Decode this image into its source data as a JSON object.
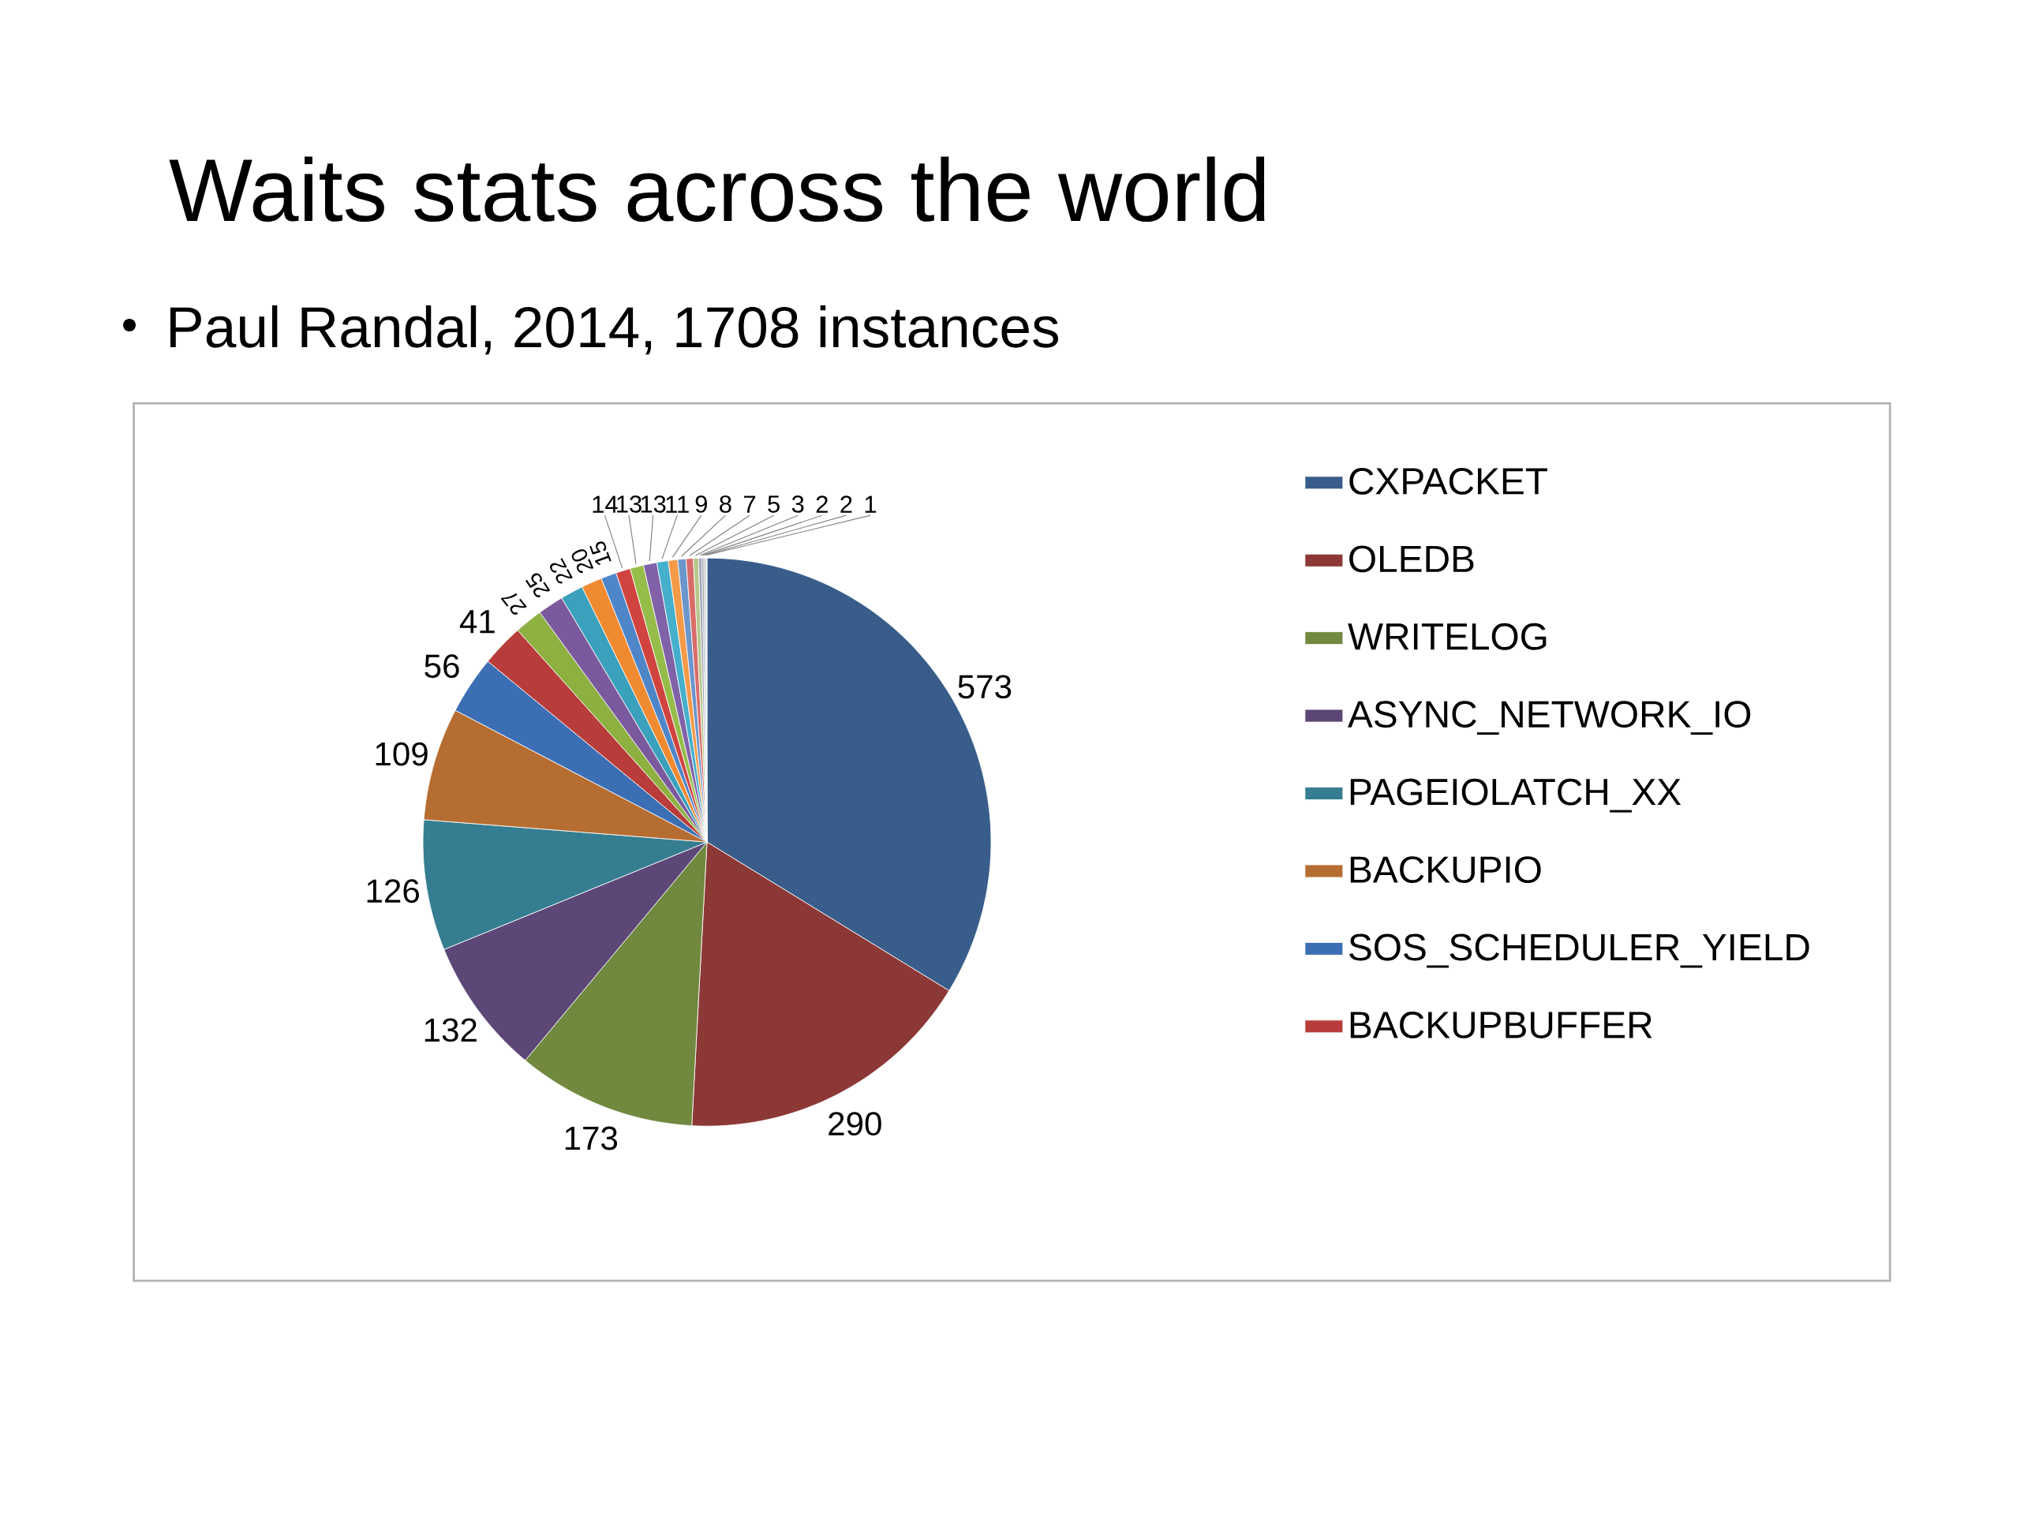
{
  "chart_data": {
    "type": "pie",
    "title": "Waits stats across the world",
    "subtitle": "Paul Randal, 2014, 1708 instances",
    "categories": [
      "CXPACKET",
      "OLEDB",
      "WRITELOG",
      "ASYNC_NETWORK_IO",
      "PAGEIOLATCH_XX",
      "BACKUPIO",
      "SOS_SCHEDULER_YIELD",
      "BACKUPBUFFER",
      null,
      null,
      null,
      null,
      null,
      null,
      null,
      null,
      null,
      null,
      null,
      null,
      null,
      null,
      null,
      null,
      null
    ],
    "values": [
      573,
      290,
      173,
      132,
      126,
      109,
      56,
      41,
      27,
      25,
      22,
      20,
      15,
      14,
      13,
      13,
      11,
      9,
      8,
      7,
      5,
      3,
      2,
      2,
      1
    ],
    "colors": [
      "#385d8a",
      "#8c3836",
      "#71893f",
      "#5c4776",
      "#357d91",
      "#b66d31",
      "#3c6eb4",
      "#b83d3a",
      "#8db040",
      "#7a5a9c",
      "#3aa0bc",
      "#f08a30",
      "#4f86c8",
      "#d0433f",
      "#96bd4a",
      "#8062a8",
      "#45afcc",
      "#f59a48",
      "#6b96cc",
      "#d86c6a",
      "#b5c98a",
      "#a4a4b8",
      "#9aa6ac",
      "#c0c0c4",
      "#d4d4d8"
    ],
    "data_labels": true,
    "legend": "right"
  }
}
